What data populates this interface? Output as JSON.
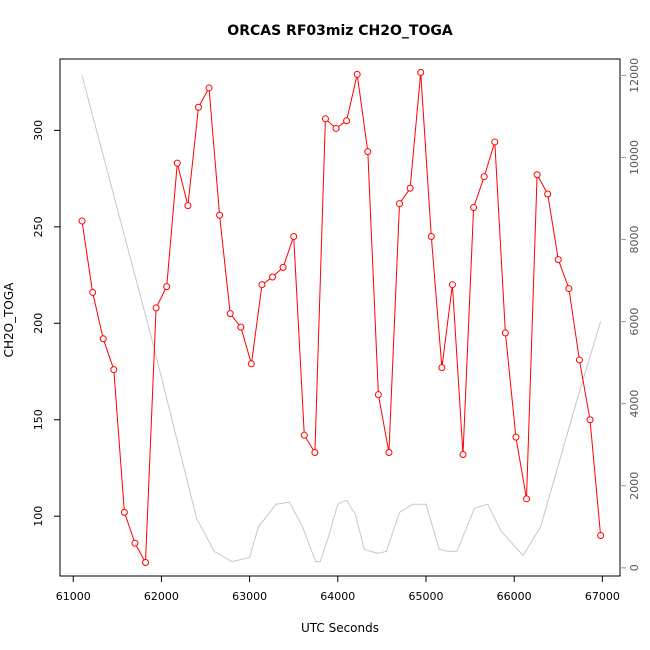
{
  "chart_data": {
    "type": "line",
    "title": "ORCAS RF03miz CH2O_TOGA",
    "xlabel": "UTC Seconds",
    "ylabel": "CH2O_TOGA",
    "xlim": [
      60850,
      67200
    ],
    "ylim": [
      69,
      337
    ],
    "y2lim": [
      -200,
      12400
    ],
    "x_ticks": [
      61000,
      62000,
      63000,
      64000,
      65000,
      66000,
      67000
    ],
    "y_ticks": [
      100,
      150,
      200,
      250,
      300
    ],
    "y2_ticks": [
      0,
      2000,
      4000,
      6000,
      8000,
      10000,
      12000
    ],
    "grid": false,
    "series": [
      {
        "color": "#ff0000",
        "axis": "left",
        "marker": "open-circle",
        "x": [
          61100,
          61220,
          61340,
          61460,
          61580,
          61700,
          61820,
          61940,
          62060,
          62180,
          62300,
          62420,
          62540,
          62660,
          62780,
          62900,
          63020,
          63140,
          63260,
          63380,
          63500,
          63620,
          63740,
          63860,
          63980,
          64100,
          64220,
          64340,
          64460,
          64580,
          64700,
          64820,
          64940,
          65060,
          65180,
          65300,
          65420,
          65540,
          65660,
          65780,
          65900,
          66020,
          66140,
          66260,
          66380,
          66500,
          66620,
          66740,
          66860,
          66980
        ],
        "values": [
          253,
          216,
          192,
          176,
          102,
          86,
          76,
          208,
          219,
          283,
          261,
          312,
          322,
          256,
          205,
          198,
          179,
          220,
          224,
          229,
          245,
          142,
          133,
          306,
          301,
          305,
          329,
          289,
          163,
          133,
          262,
          270,
          330,
          245,
          177,
          220,
          132,
          260,
          276,
          294,
          195,
          141,
          109,
          277,
          267,
          233,
          218,
          181,
          150,
          90
        ]
      },
      {
        "color": "#c8c8c8",
        "axis": "right",
        "marker": "none",
        "x": [
          61100,
          61900,
          62400,
          62600,
          62800,
          63000,
          63100,
          63300,
          63450,
          63600,
          63750,
          63800,
          63900,
          64000,
          64100,
          64200,
          64300,
          64450,
          64550,
          64700,
          64850,
          65000,
          65150,
          65250,
          65350,
          65550,
          65700,
          65850,
          66100,
          66300,
          66500,
          66700,
          66980
        ],
        "values": [
          12000,
          5500,
          1200,
          400,
          150,
          250,
          1000,
          1550,
          1600,
          1000,
          150,
          150,
          800,
          1550,
          1650,
          1300,
          450,
          350,
          400,
          1350,
          1550,
          1550,
          450,
          400,
          400,
          1450,
          1550,
          900,
          300,
          1000,
          2500,
          4000,
          6000
        ]
      }
    ]
  }
}
